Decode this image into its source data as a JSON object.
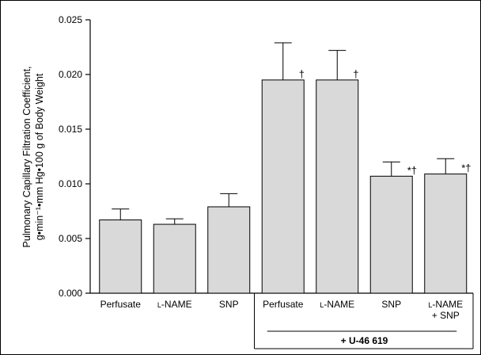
{
  "chart_data": {
    "type": "bar",
    "ylabel_lines": [
      "Pulmonary Capillary Filtration Coefficient,",
      "g•min⁻¹•mm Hg•100 g of Body Weight"
    ],
    "ylim": [
      0,
      0.025
    ],
    "yticks": [
      "0.000",
      "0.005",
      "0.010",
      "0.015",
      "0.020",
      "0.025"
    ],
    "ytick_values": [
      0,
      0.005,
      0.01,
      0.015,
      0.02,
      0.025
    ],
    "categories": [
      [
        "Perfusate"
      ],
      [
        "L-NAME"
      ],
      [
        "SNP"
      ],
      [
        "Perfusate"
      ],
      [
        "L-NAME"
      ],
      [
        "SNP"
      ],
      [
        "L-NAME",
        "+ SNP"
      ]
    ],
    "values": [
      0.0067,
      0.0063,
      0.0079,
      0.0195,
      0.0195,
      0.0107,
      0.0109
    ],
    "errors": [
      0.001,
      0.0005,
      0.0012,
      0.0034,
      0.0027,
      0.0013,
      0.0014
    ],
    "annotations": [
      "",
      "",
      "",
      "†",
      "†",
      "*†",
      "*†"
    ],
    "group_label": "+ U-46 619",
    "group_start_index": 3,
    "bar_fill": "#d9d9d9",
    "bar_stroke": "#000000"
  }
}
